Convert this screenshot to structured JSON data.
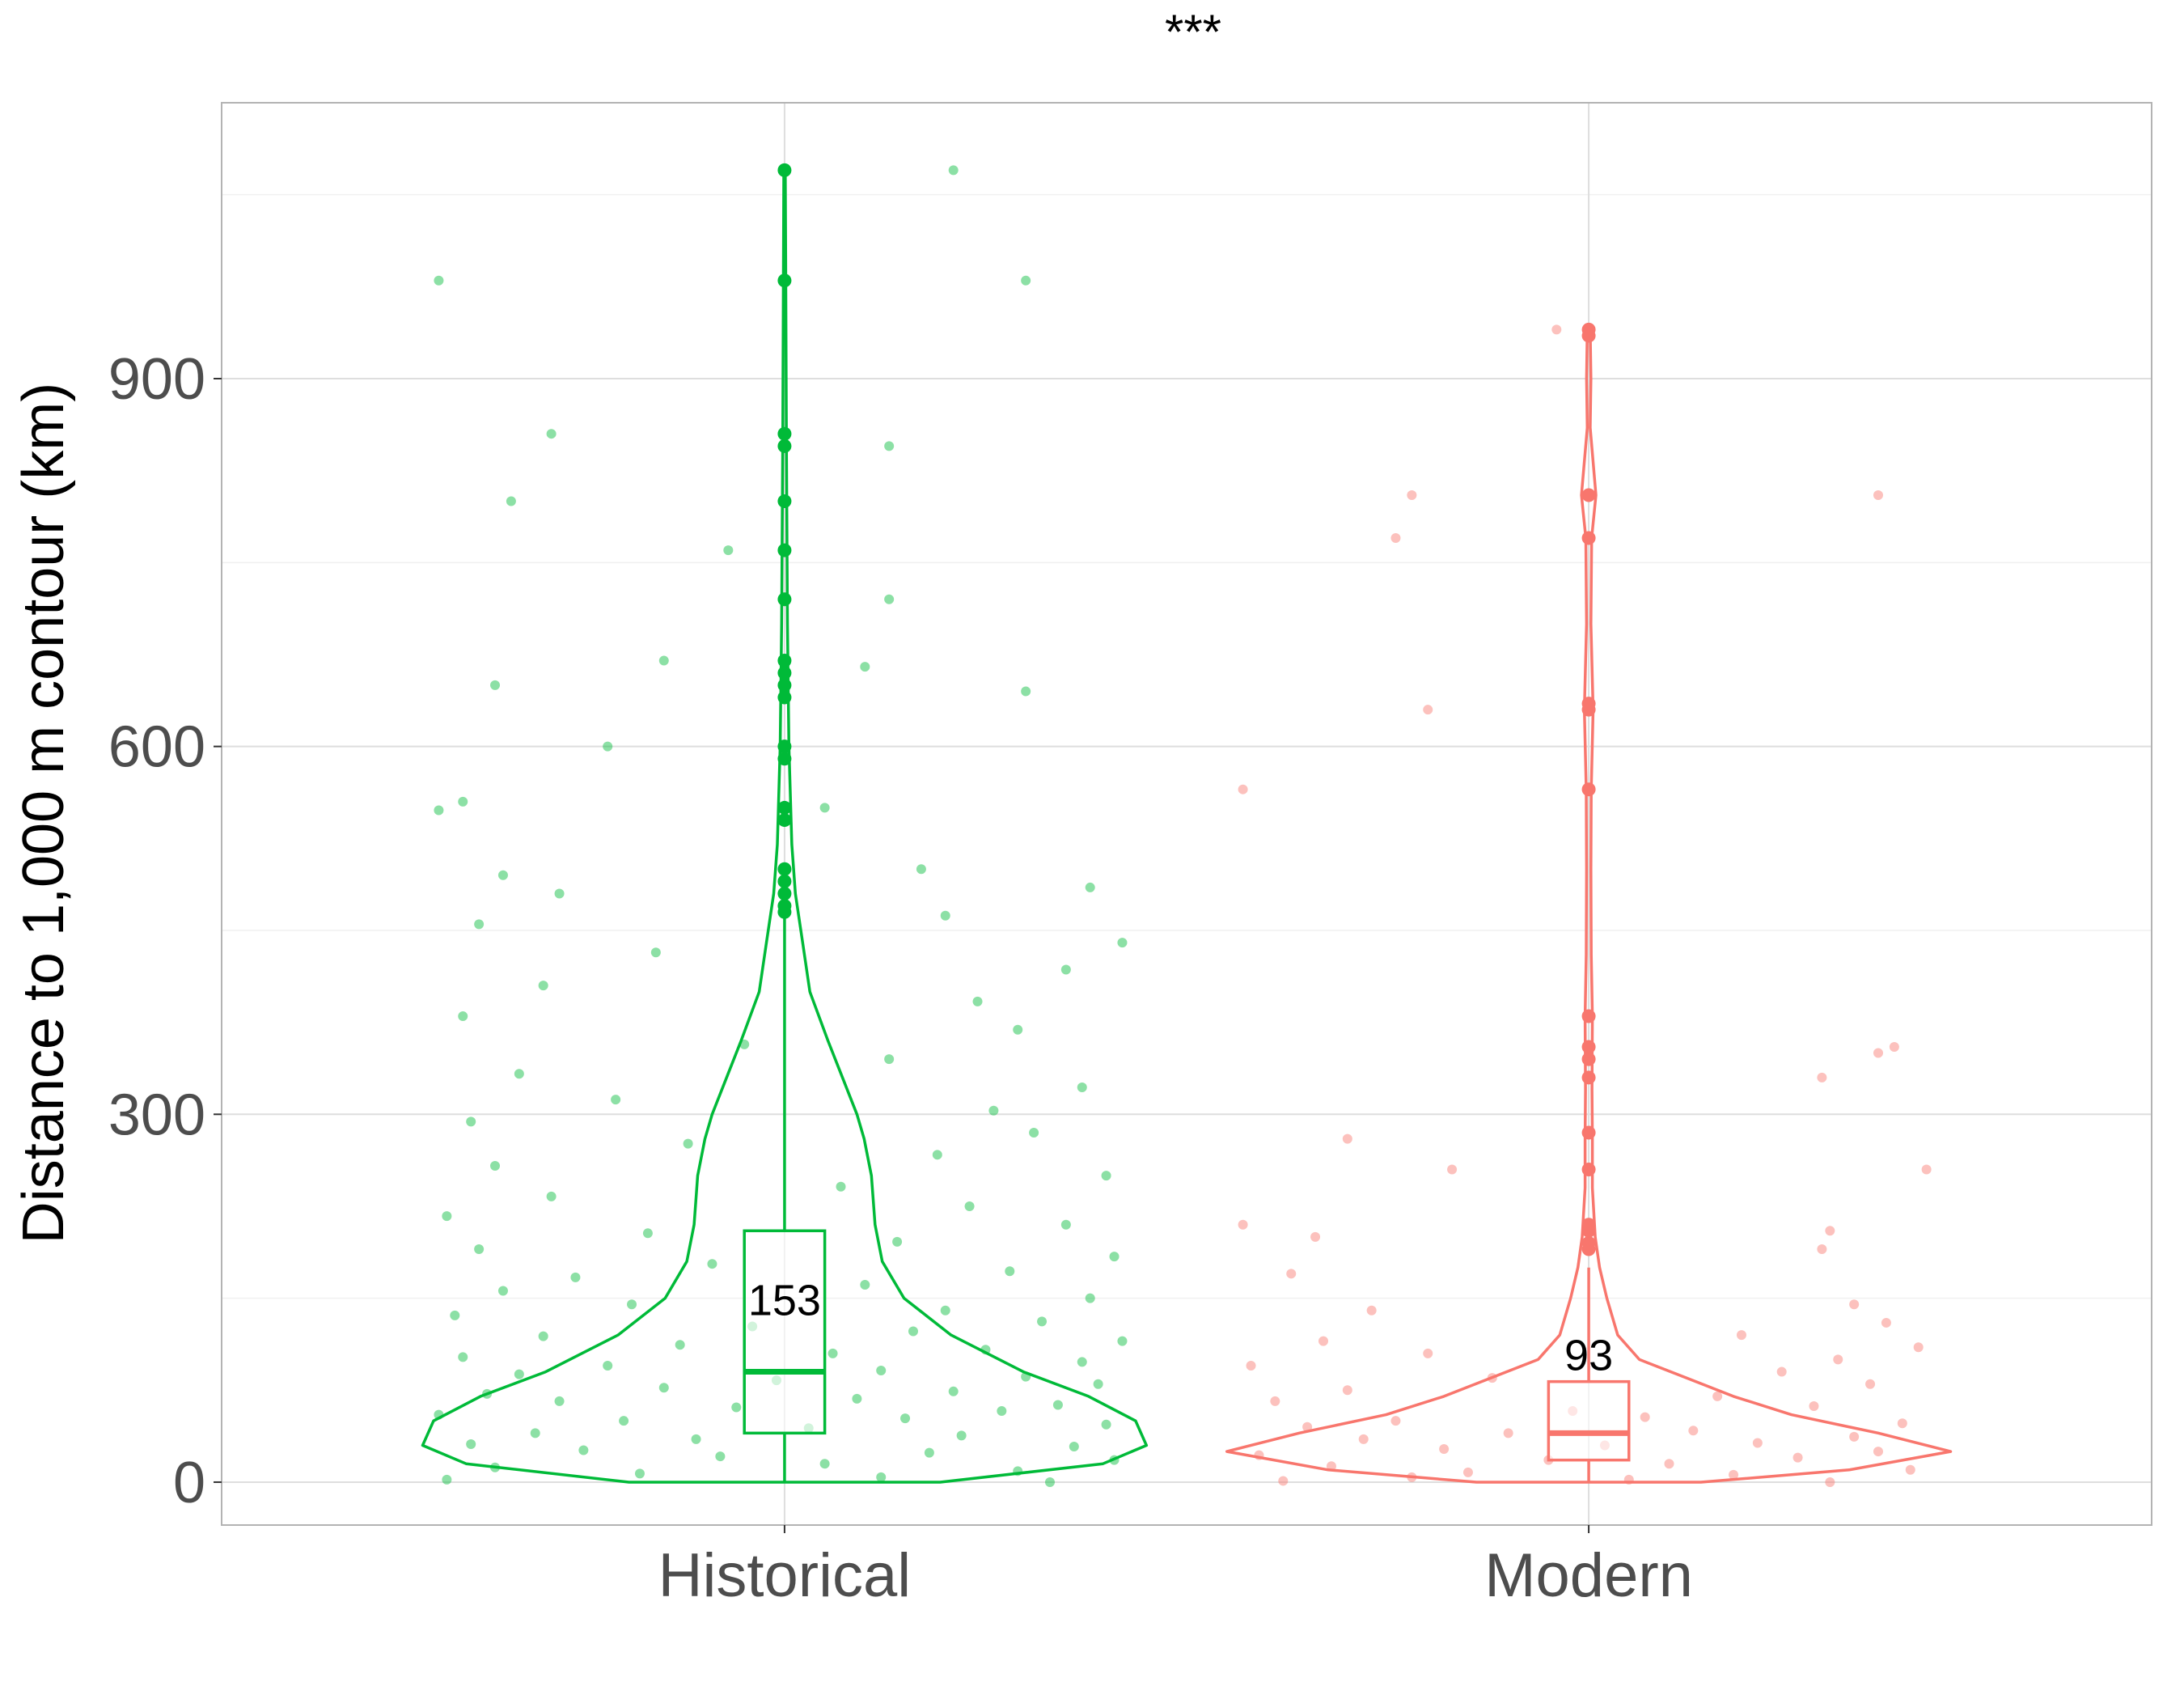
{
  "chart_data": {
    "type": "violin",
    "title": "***",
    "xlabel": "",
    "ylabel": "Distance to 1,000 m contour (km)",
    "ylim": [
      -35,
      1125
    ],
    "yticks": [
      0,
      300,
      600,
      900
    ],
    "grid": true,
    "legend": "none",
    "categories": [
      "Historical",
      "Modern"
    ],
    "colors": {
      "Historical": "#00ba38",
      "Modern": "#f8766d"
    },
    "series": [
      {
        "category": "Historical",
        "n_label": "153",
        "box": {
          "q1": 40,
          "median": 90,
          "q3": 205
        },
        "whisker": {
          "low": 0,
          "high": 460
        },
        "outliers": [
          465,
          470,
          480,
          490,
          500,
          540,
          550,
          590,
          600,
          640,
          650,
          660,
          670,
          720,
          760,
          800,
          845,
          855,
          980,
          1070
        ],
        "violin": [
          [
            0,
            0.43
          ],
          [
            15,
            0.88
          ],
          [
            30,
            1.0
          ],
          [
            50,
            0.97
          ],
          [
            70,
            0.84
          ],
          [
            90,
            0.66
          ],
          [
            120,
            0.46
          ],
          [
            150,
            0.33
          ],
          [
            180,
            0.27
          ],
          [
            210,
            0.25
          ],
          [
            250,
            0.24
          ],
          [
            280,
            0.22
          ],
          [
            300,
            0.2
          ],
          [
            330,
            0.16
          ],
          [
            360,
            0.12
          ],
          [
            400,
            0.07
          ],
          [
            440,
            0.05
          ],
          [
            480,
            0.03
          ],
          [
            520,
            0.02
          ],
          [
            600,
            0.012
          ],
          [
            700,
            0.008
          ],
          [
            850,
            0.005
          ],
          [
            1000,
            0.003
          ],
          [
            1070,
            0.002
          ]
        ],
        "jitter_points": [
          [
            -0.42,
            2
          ],
          [
            -0.18,
            7
          ],
          [
            0.12,
            4
          ],
          [
            0.33,
            0
          ],
          [
            -0.36,
            12
          ],
          [
            0.05,
            15
          ],
          [
            0.29,
            9
          ],
          [
            -0.08,
            21
          ],
          [
            0.41,
            18
          ],
          [
            -0.25,
            26
          ],
          [
            0.18,
            24
          ],
          [
            -0.39,
            31
          ],
          [
            0.36,
            29
          ],
          [
            -0.11,
            35
          ],
          [
            0.22,
            38
          ],
          [
            -0.31,
            40
          ],
          [
            0.03,
            44
          ],
          [
            0.4,
            47
          ],
          [
            -0.2,
            50
          ],
          [
            0.15,
            52
          ],
          [
            -0.43,
            55
          ],
          [
            0.27,
            58
          ],
          [
            -0.06,
            61
          ],
          [
            0.34,
            63
          ],
          [
            -0.28,
            66
          ],
          [
            0.09,
            68
          ],
          [
            -0.37,
            72
          ],
          [
            0.21,
            74
          ],
          [
            -0.15,
            77
          ],
          [
            0.39,
            80
          ],
          [
            -0.01,
            83
          ],
          [
            0.3,
            86
          ],
          [
            -0.33,
            88
          ],
          [
            0.12,
            91
          ],
          [
            -0.22,
            95
          ],
          [
            0.37,
            98
          ],
          [
            -0.4,
            102
          ],
          [
            0.06,
            105
          ],
          [
            0.25,
            108
          ],
          [
            -0.13,
            112
          ],
          [
            0.42,
            115
          ],
          [
            -0.3,
            119
          ],
          [
            0.16,
            123
          ],
          [
            -0.04,
            127
          ],
          [
            0.32,
            131
          ],
          [
            -0.41,
            136
          ],
          [
            0.2,
            140
          ],
          [
            -0.19,
            145
          ],
          [
            0.38,
            150
          ],
          [
            -0.35,
            156
          ],
          [
            0.1,
            161
          ],
          [
            -0.26,
            167
          ],
          [
            0.28,
            172
          ],
          [
            -0.09,
            178
          ],
          [
            0.41,
            184
          ],
          [
            -0.38,
            190
          ],
          [
            0.14,
            196
          ],
          [
            -0.17,
            203
          ],
          [
            0.35,
            210
          ],
          [
            -0.42,
            217
          ],
          [
            0.23,
            225
          ],
          [
            -0.29,
            233
          ],
          [
            0.07,
            241
          ],
          [
            0.4,
            250
          ],
          [
            -0.36,
            258
          ],
          [
            0.19,
            267
          ],
          [
            -0.12,
            276
          ],
          [
            0.31,
            285
          ],
          [
            -0.39,
            294
          ],
          [
            0.26,
            303
          ],
          [
            -0.21,
            312
          ],
          [
            0.37,
            322
          ],
          [
            -0.33,
            333
          ],
          [
            0.13,
            345
          ],
          [
            -0.05,
            357
          ],
          [
            0.29,
            369
          ],
          [
            -0.4,
            380
          ],
          [
            0.24,
            392
          ],
          [
            -0.3,
            405
          ],
          [
            0.35,
            418
          ],
          [
            -0.16,
            432
          ],
          [
            0.42,
            440
          ],
          [
            -0.38,
            455
          ],
          [
            0.2,
            462
          ],
          [
            -0.28,
            480
          ],
          [
            0.38,
            485
          ],
          [
            -0.35,
            495
          ],
          [
            0.17,
            500
          ],
          [
            -0.43,
            548
          ],
          [
            0.05,
            550
          ],
          [
            -0.4,
            555
          ],
          [
            -0.22,
            600
          ],
          [
            0.3,
            645
          ],
          [
            -0.36,
            650
          ],
          [
            0.1,
            665
          ],
          [
            -0.15,
            670
          ],
          [
            0.13,
            720
          ],
          [
            -0.07,
            760
          ],
          [
            -0.34,
            800
          ],
          [
            0.13,
            845
          ],
          [
            -0.29,
            855
          ],
          [
            -0.43,
            980
          ],
          [
            0.3,
            980
          ],
          [
            0.21,
            1070
          ]
        ]
      },
      {
        "category": "Modern",
        "n_label": "93",
        "box": {
          "q1": 18,
          "median": 40,
          "q3": 82
        },
        "whisker": {
          "low": 0,
          "high": 175
        },
        "outliers": [
          190,
          195,
          205,
          210,
          255,
          285,
          330,
          345,
          355,
          380,
          565,
          630,
          635,
          770,
          805,
          935,
          940
        ],
        "violin": [
          [
            0,
            0.31
          ],
          [
            10,
            0.72
          ],
          [
            25,
            1.0
          ],
          [
            40,
            0.8
          ],
          [
            55,
            0.56
          ],
          [
            70,
            0.4
          ],
          [
            85,
            0.27
          ],
          [
            100,
            0.14
          ],
          [
            120,
            0.08
          ],
          [
            150,
            0.05
          ],
          [
            175,
            0.03
          ],
          [
            200,
            0.018
          ],
          [
            240,
            0.01
          ],
          [
            280,
            0.01
          ],
          [
            320,
            0.009
          ],
          [
            380,
            0.01
          ],
          [
            430,
            0.007
          ],
          [
            500,
            0.006
          ],
          [
            565,
            0.007
          ],
          [
            630,
            0.012
          ],
          [
            700,
            0.006
          ],
          [
            770,
            0.008
          ],
          [
            805,
            0.02
          ],
          [
            860,
            0.004
          ],
          [
            900,
            0.006
          ],
          [
            940,
            0.004
          ]
        ],
        "jitter_points": [
          [
            -0.38,
            1
          ],
          [
            -0.22,
            4
          ],
          [
            0.05,
            2
          ],
          [
            0.3,
            0
          ],
          [
            -0.15,
            8
          ],
          [
            0.18,
            6
          ],
          [
            0.4,
            10
          ],
          [
            -0.32,
            13
          ],
          [
            0.1,
            15
          ],
          [
            -0.05,
            18
          ],
          [
            0.26,
            20
          ],
          [
            -0.41,
            22
          ],
          [
            0.36,
            25
          ],
          [
            -0.18,
            27
          ],
          [
            0.02,
            30
          ],
          [
            0.21,
            32
          ],
          [
            -0.28,
            35
          ],
          [
            0.33,
            37
          ],
          [
            -0.1,
            40
          ],
          [
            0.13,
            42
          ],
          [
            -0.35,
            45
          ],
          [
            0.39,
            48
          ],
          [
            -0.24,
            50
          ],
          [
            0.07,
            53
          ],
          [
            -0.02,
            58
          ],
          [
            0.28,
            62
          ],
          [
            -0.39,
            66
          ],
          [
            0.16,
            70
          ],
          [
            -0.3,
            75
          ],
          [
            0.35,
            80
          ],
          [
            -0.12,
            85
          ],
          [
            0.24,
            90
          ],
          [
            -0.42,
            95
          ],
          [
            0.31,
            100
          ],
          [
            -0.2,
            105
          ],
          [
            0.41,
            110
          ],
          [
            -0.33,
            115
          ],
          [
            0.19,
            120
          ],
          [
            0.37,
            130
          ],
          [
            -0.27,
            140
          ],
          [
            0.33,
            145
          ],
          [
            -0.37,
            170
          ],
          [
            -0.34,
            200
          ],
          [
            -0.43,
            210
          ],
          [
            0.29,
            190
          ],
          [
            0.3,
            205
          ],
          [
            -0.17,
            255
          ],
          [
            0.42,
            255
          ],
          [
            -0.3,
            280
          ],
          [
            0.29,
            330
          ],
          [
            0.36,
            350
          ],
          [
            0.38,
            355
          ],
          [
            -0.43,
            565
          ],
          [
            -0.2,
            630
          ],
          [
            -0.24,
            770
          ],
          [
            -0.22,
            805
          ],
          [
            0.36,
            805
          ],
          [
            -0.04,
            940
          ]
        ]
      }
    ]
  }
}
